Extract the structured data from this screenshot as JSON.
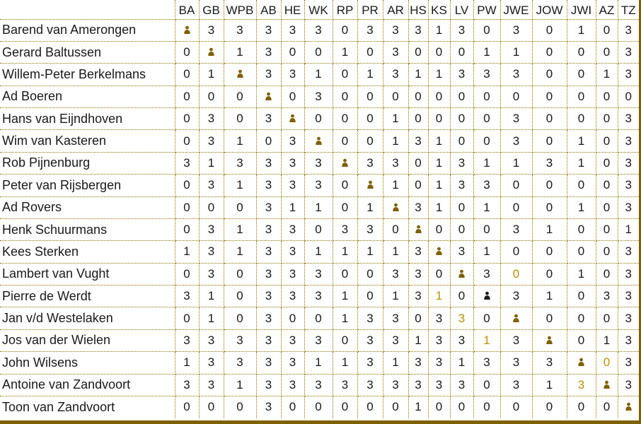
{
  "table": {
    "corner_label": "",
    "columns": [
      "BA",
      "GB",
      "WPB",
      "AB",
      "HE",
      "WK",
      "RP",
      "PR",
      "AR",
      "HS",
      "KS",
      "LV",
      "PW",
      "JWE",
      "JOW",
      "JWI",
      "AZ",
      "TZ"
    ],
    "self_marker": "X",
    "rows": [
      {
        "name": "Barend van Amerongen",
        "cells": [
          "X",
          "3",
          "3",
          "3",
          "3",
          "3",
          "0",
          "3",
          "3",
          "3",
          "1",
          "3",
          "0",
          "3",
          "0",
          "1",
          "0",
          "3"
        ]
      },
      {
        "name": "Gerard Baltussen",
        "cells": [
          "0",
          "X",
          "1",
          "3",
          "0",
          "0",
          "1",
          "0",
          "3",
          "0",
          "0",
          "0",
          "1",
          "1",
          "0",
          "0",
          "0",
          "3"
        ]
      },
      {
        "name": "Willem-Peter Berkelmans",
        "cells": [
          "0",
          "1",
          "X",
          "3",
          "3",
          "1",
          "0",
          "1",
          "3",
          "1",
          "1",
          "3",
          "3",
          "3",
          "0",
          "0",
          "1",
          "3"
        ]
      },
      {
        "name": "Ad Boeren",
        "cells": [
          "0",
          "0",
          "0",
          "X",
          "0",
          "3",
          "0",
          "0",
          "0",
          "0",
          "0",
          "0",
          "0",
          "0",
          "0",
          "0",
          "0",
          "0"
        ]
      },
      {
        "name": "Hans van Eijndhoven",
        "cells": [
          "0",
          "3",
          "0",
          "3",
          "X",
          "0",
          "0",
          "0",
          "1",
          "0",
          "0",
          "0",
          "0",
          "3",
          "0",
          "0",
          "0",
          "3"
        ]
      },
      {
        "name": "Wim van Kasteren",
        "cells": [
          "0",
          "3",
          "1",
          "0",
          "3",
          "X",
          "0",
          "0",
          "1",
          "3",
          "1",
          "0",
          "0",
          "3",
          "0",
          "1",
          "0",
          "3"
        ]
      },
      {
        "name": "Rob Pijnenburg",
        "cells": [
          "3",
          "1",
          "3",
          "3",
          "3",
          "3",
          "X",
          "3",
          "3",
          "0",
          "1",
          "3",
          "1",
          "1",
          "3",
          "1",
          "0",
          "3"
        ]
      },
      {
        "name": "Peter van Rijsbergen",
        "cells": [
          "0",
          "3",
          "1",
          "3",
          "3",
          "3",
          "0",
          "X",
          "1",
          "0",
          "1",
          "3",
          "3",
          "0",
          "0",
          "0",
          "0",
          "3"
        ]
      },
      {
        "name": "Ad Rovers",
        "cells": [
          "0",
          "0",
          "0",
          "3",
          "1",
          "1",
          "0",
          "1",
          "X",
          "3",
          "1",
          "0",
          "1",
          "0",
          "0",
          "1",
          "0",
          "3"
        ]
      },
      {
        "name": "Henk Schuurmans",
        "cells": [
          "0",
          "3",
          "1",
          "3",
          "3",
          "0",
          "3",
          "3",
          "0",
          "X",
          "0",
          "0",
          "0",
          "3",
          "1",
          "0",
          "0",
          "1"
        ]
      },
      {
        "name": "Kees Sterken",
        "cells": [
          "1",
          "3",
          "1",
          "3",
          "3",
          "1",
          "1",
          "1",
          "1",
          "3",
          "X",
          "3",
          "1",
          "0",
          "0",
          "0",
          "0",
          "3"
        ]
      },
      {
        "name": "Lambert van Vught",
        "cells": [
          "0",
          "3",
          "0",
          "3",
          "3",
          "3",
          "0",
          "0",
          "3",
          "3",
          "0",
          "X",
          "3",
          "0",
          "0",
          "1",
          "0",
          "3"
        ]
      },
      {
        "name": "Pierre de Werdt",
        "cells": [
          "3",
          "1",
          "0",
          "3",
          "3",
          "3",
          "1",
          "0",
          "1",
          "3",
          "1",
          "0",
          "X",
          "3",
          "1",
          "0",
          "3",
          "3"
        ]
      },
      {
        "name": "Jan v/d Westelaken",
        "cells": [
          "0",
          "1",
          "0",
          "3",
          "0",
          "0",
          "1",
          "3",
          "3",
          "0",
          "3",
          "3",
          "0",
          "X",
          "0",
          "0",
          "0",
          "3"
        ]
      },
      {
        "name": "Jos van der Wielen",
        "cells": [
          "3",
          "3",
          "3",
          "3",
          "3",
          "3",
          "0",
          "3",
          "3",
          "1",
          "3",
          "3",
          "1",
          "3",
          "X",
          "0",
          "1",
          "3"
        ]
      },
      {
        "name": "John Wilsens",
        "cells": [
          "1",
          "3",
          "3",
          "3",
          "3",
          "1",
          "1",
          "3",
          "1",
          "3",
          "3",
          "1",
          "3",
          "3",
          "3",
          "X",
          "0",
          "3"
        ]
      },
      {
        "name": "Antoine van Zandvoort",
        "cells": [
          "3",
          "3",
          "1",
          "3",
          "3",
          "3",
          "3",
          "3",
          "3",
          "3",
          "3",
          "3",
          "0",
          "3",
          "1",
          "3",
          "X",
          "3"
        ]
      },
      {
        "name": "Toon van Zandvoort",
        "cells": [
          "0",
          "0",
          "0",
          "3",
          "0",
          "0",
          "0",
          "0",
          "0",
          "1",
          "0",
          "0",
          "0",
          "0",
          "0",
          "0",
          "0",
          "X"
        ]
      }
    ],
    "gold_cells": [
      [
        11,
        13
      ],
      [
        12,
        10
      ],
      [
        13,
        11
      ],
      [
        14,
        12
      ],
      [
        15,
        16
      ],
      [
        16,
        15
      ]
    ],
    "black_self_cells": [
      [
        12,
        12
      ]
    ]
  },
  "colors": {
    "background": "#ffffff",
    "grid_dotted": "#8f7200",
    "border_thick": "#7d6000",
    "text": "#1a1a1a",
    "gold_value": "#bf8f00",
    "self_icon": "#7f6000",
    "self_icon_black": "#1a1a1a"
  }
}
